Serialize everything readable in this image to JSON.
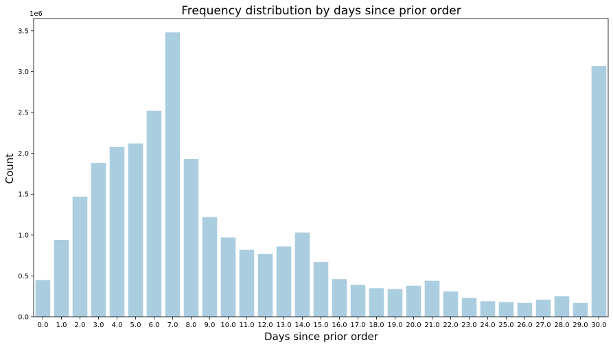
{
  "chart_data": {
    "type": "bar",
    "title": "Frequency distribution by days since prior order",
    "xlabel": "Days since prior order",
    "ylabel": "Count",
    "y_offset_label": "1e6",
    "categories": [
      "0.0",
      "1.0",
      "2.0",
      "3.0",
      "4.0",
      "5.0",
      "6.0",
      "7.0",
      "8.0",
      "9.0",
      "10.0",
      "11.0",
      "12.0",
      "13.0",
      "14.0",
      "15.0",
      "16.0",
      "17.0",
      "18.0",
      "19.0",
      "20.0",
      "21.0",
      "22.0",
      "23.0",
      "24.0",
      "25.0",
      "26.0",
      "27.0",
      "28.0",
      "29.0",
      "30.0"
    ],
    "values": [
      450000,
      940000,
      1470000,
      1880000,
      2080000,
      2120000,
      2520000,
      3480000,
      1930000,
      1220000,
      970000,
      820000,
      770000,
      860000,
      1030000,
      670000,
      460000,
      390000,
      350000,
      340000,
      380000,
      440000,
      310000,
      230000,
      190000,
      180000,
      170000,
      210000,
      250000,
      170000,
      3070000
    ],
    "ylim": [
      0,
      3650000
    ],
    "yticks": [
      0,
      500000,
      1000000,
      1500000,
      2000000,
      2500000,
      3000000,
      3500000
    ],
    "ytick_labels": [
      "0.0",
      "0.5",
      "1.0",
      "1.5",
      "2.0",
      "2.5",
      "3.0",
      "3.5"
    ],
    "bar_color": "#abcde0",
    "grid": false
  }
}
